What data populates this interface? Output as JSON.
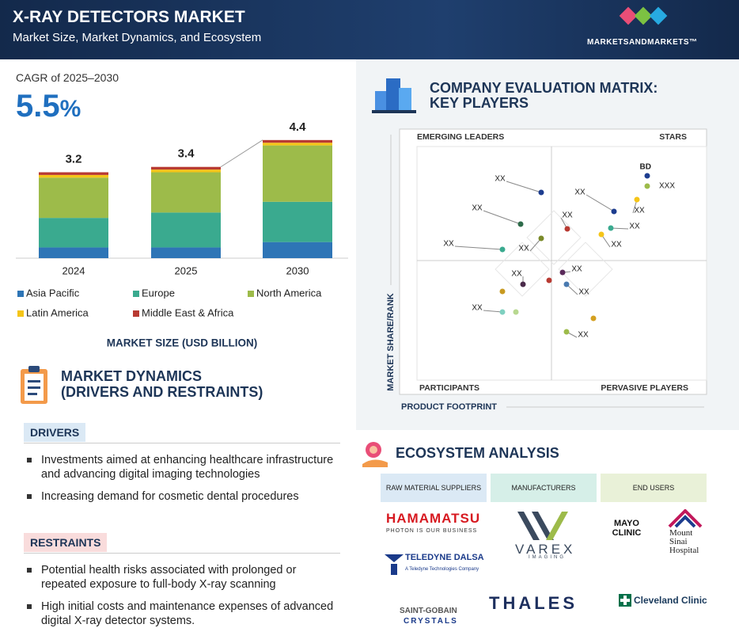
{
  "header": {
    "title": "X-RAY DETECTORS MARKET",
    "subtitle": "Market Size, Market Dynamics, and Ecosystem",
    "brand": "MARKETSANDMARKETS™"
  },
  "cagr": {
    "label": "CAGR of 2025–2030",
    "value": "5.5",
    "unit": "%"
  },
  "chart_data": {
    "type": "stacked-bar",
    "title": "MARKET SIZE (USD BILLION)",
    "categories": [
      "2024",
      "2025",
      "2030"
    ],
    "series": [
      {
        "name": "Asia Pacific",
        "color": "#2e75b6",
        "values": [
          0.4,
          0.4,
          0.6
        ]
      },
      {
        "name": "Europe",
        "color": "#3aaa8f",
        "values": [
          1.1,
          1.3,
          1.5
        ]
      },
      {
        "name": "North America",
        "color": "#9dbb4a",
        "values": [
          1.5,
          1.5,
          2.1
        ]
      },
      {
        "name": "Latin America",
        "color": "#f5c518",
        "values": [
          0.1,
          0.1,
          0.1
        ]
      },
      {
        "name": "Middle East & Africa",
        "color": "#b83a32",
        "values": [
          0.1,
          0.1,
          0.1
        ]
      }
    ],
    "totals": [
      3.2,
      3.4,
      4.4
    ]
  },
  "dynamics": {
    "title": [
      "MARKET DYNAMICS",
      "(DRIVERS AND RESTRAINTS)"
    ],
    "drivers": {
      "heading": "DRIVERS",
      "items": [
        "Investments aimed at enhancing healthcare infrastructure and advancing digital imaging technologies",
        "Increasing demand for cosmetic dental procedures"
      ]
    },
    "restraints": {
      "heading": "RESTRAINTS",
      "items": [
        "Potential health risks associated with prolonged or repeated exposure to full-body X-ray scanning",
        "High initial costs and maintenance expenses of advanced digital X-ray detector systems."
      ]
    }
  },
  "matrix": {
    "title": [
      "COMPANY EVALUATION MATRIX:",
      "KEY PLAYERS"
    ],
    "quadrants": [
      "EMERGING LEADERS",
      "STARS",
      "PARTICIPANTS",
      "PERVASIVE PLAYERS"
    ],
    "x_label": "PRODUCT FOOTPRINT",
    "y_label": "MARKET SHARE/RANK",
    "points": [
      "BD",
      "XXX",
      "XX",
      "XX",
      "XX",
      "XX",
      "XX",
      "XX",
      "XX",
      "XX",
      "XX",
      "XX",
      "XX",
      "XX",
      "XX",
      "XX"
    ]
  },
  "ecosystem": {
    "title": "ECOSYSTEM ANALYSIS",
    "columns": [
      {
        "heading": "RAW MATERIAL SUPPLIERS",
        "items": [
          "HAMAMATSU",
          "PHOTON IS OUR BUSINESS",
          "TELEDYNE DALSA",
          "A Teledyne Technologies Company",
          "SAINT-GOBAIN",
          "CRYSTALS"
        ]
      },
      {
        "heading": "MANUFACTURERS",
        "items": [
          "VAREX",
          "IMAGING",
          "THALES"
        ]
      },
      {
        "heading": "END USERS",
        "items": [
          "MAYO CLINIC",
          "Mount Sinai Hospital",
          "Cleveland Clinic"
        ]
      }
    ]
  }
}
